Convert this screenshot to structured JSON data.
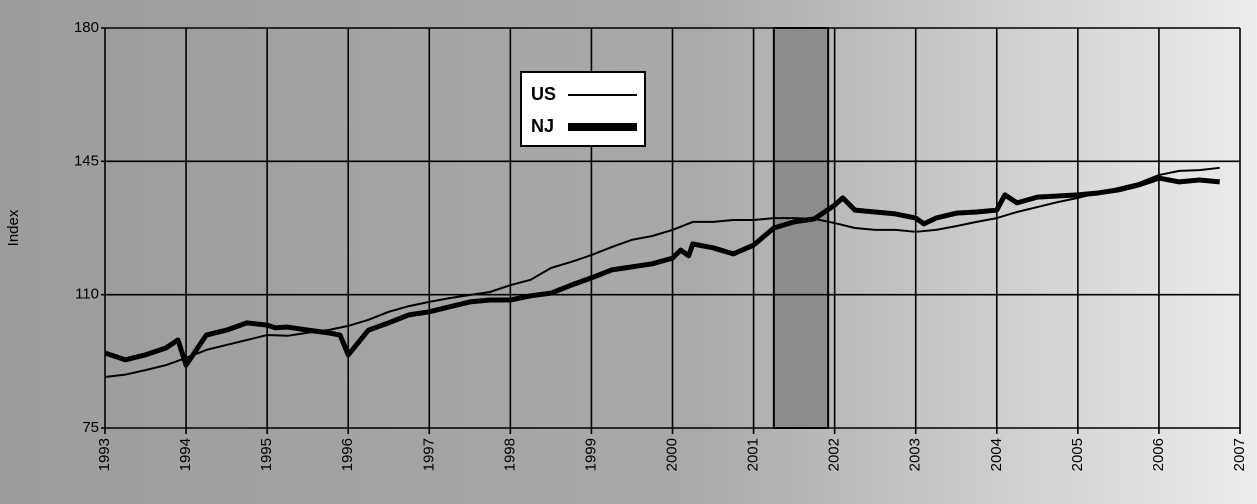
{
  "chart_data": {
    "type": "line",
    "y_label": "Index",
    "xlim": [
      1993,
      2007
    ],
    "ylim": [
      75,
      180
    ],
    "xticks": [
      1993,
      1994,
      1995,
      1996,
      1997,
      1998,
      1999,
      2000,
      2001,
      2002,
      2003,
      2004,
      2005,
      2006,
      2007
    ],
    "yticks": [
      75,
      110,
      145,
      180
    ],
    "grid": true,
    "recession": [
      2001.25,
      2001.92
    ],
    "series": [
      {
        "name": "US",
        "color": "#000000",
        "width": 2,
        "x": [
          1993,
          1993.25,
          1993.5,
          1993.75,
          1994,
          1994.25,
          1994.5,
          1994.75,
          1995,
          1995.25,
          1995.5,
          1995.75,
          1996,
          1996.25,
          1996.5,
          1996.75,
          1997,
          1997.25,
          1997.5,
          1997.75,
          1998,
          1998.25,
          1998.5,
          1998.75,
          1999,
          1999.25,
          1999.5,
          1999.75,
          2000,
          2000.25,
          2000.5,
          2000.75,
          2001,
          2001.25,
          2001.5,
          2001.75,
          2002,
          2002.25,
          2002.5,
          2002.75,
          2003,
          2003.25,
          2003.5,
          2003.75,
          2004,
          2004.25,
          2004.5,
          2004.75,
          2005,
          2005.25,
          2005.5,
          2005.75,
          2006,
          2006.25,
          2006.5,
          2006.75
        ],
        "values": [
          88.4,
          89,
          90.2,
          91.5,
          93.4,
          95.5,
          96.8,
          98.1,
          99.4,
          99.2,
          100,
          100.7,
          101.8,
          103.4,
          105.5,
          107,
          108.1,
          109.1,
          109.9,
          110.7,
          112.5,
          113.9,
          117,
          118.6,
          120.4,
          122.5,
          124.4,
          125.4,
          127,
          129.1,
          129.1,
          129.6,
          129.6,
          130.1,
          130.1,
          129.9,
          128.8,
          127.5,
          127,
          127,
          126.5,
          127,
          128,
          129.1,
          130.1,
          131.7,
          133,
          134.3,
          135.4,
          136.7,
          138,
          139.3,
          141.4,
          142.5,
          142.7,
          143.3
        ]
      },
      {
        "name": "NJ",
        "color": "#000000",
        "width": 5,
        "x": [
          1993,
          1993.25,
          1993.5,
          1993.75,
          1993.9,
          1994,
          1994.25,
          1994.5,
          1994.75,
          1995,
          1995.1,
          1995.25,
          1995.5,
          1995.75,
          1995.9,
          1996,
          1996.25,
          1996.5,
          1996.75,
          1997,
          1997.25,
          1997.5,
          1997.75,
          1998,
          1998.25,
          1998.5,
          1998.75,
          1999,
          1999.25,
          1999.5,
          1999.75,
          2000,
          2000.1,
          2000.2,
          2000.25,
          2000.5,
          2000.75,
          2001,
          2001.25,
          2001.5,
          2001.75,
          2002,
          2002.1,
          2002.25,
          2002.5,
          2002.75,
          2003,
          2003.1,
          2003.25,
          2003.5,
          2003.75,
          2004,
          2004.1,
          2004.25,
          2004.5,
          2004.75,
          2005,
          2005.25,
          2005.5,
          2005.75,
          2006,
          2006.25,
          2006.5,
          2006.75
        ],
        "values": [
          94.7,
          92.9,
          94.2,
          96,
          98.1,
          91.5,
          99.4,
          100.7,
          102.6,
          102,
          101.3,
          101.5,
          100.7,
          100,
          99.4,
          94.2,
          100.7,
          102.6,
          104.7,
          105.5,
          106.8,
          108.1,
          108.6,
          108.6,
          109.7,
          110.4,
          112.5,
          114.4,
          116.5,
          117.3,
          118.1,
          119.6,
          121.7,
          120.2,
          123.3,
          122.3,
          120.7,
          123,
          127.5,
          129.1,
          129.9,
          133.5,
          135.4,
          132.2,
          131.7,
          131.2,
          130.1,
          128.6,
          130.1,
          131.4,
          131.7,
          132.2,
          136.2,
          134.1,
          135.6,
          135.9,
          136.2,
          136.7,
          137.5,
          138.8,
          140.6,
          139.6,
          140.1,
          139.6
        ]
      }
    ]
  }
}
